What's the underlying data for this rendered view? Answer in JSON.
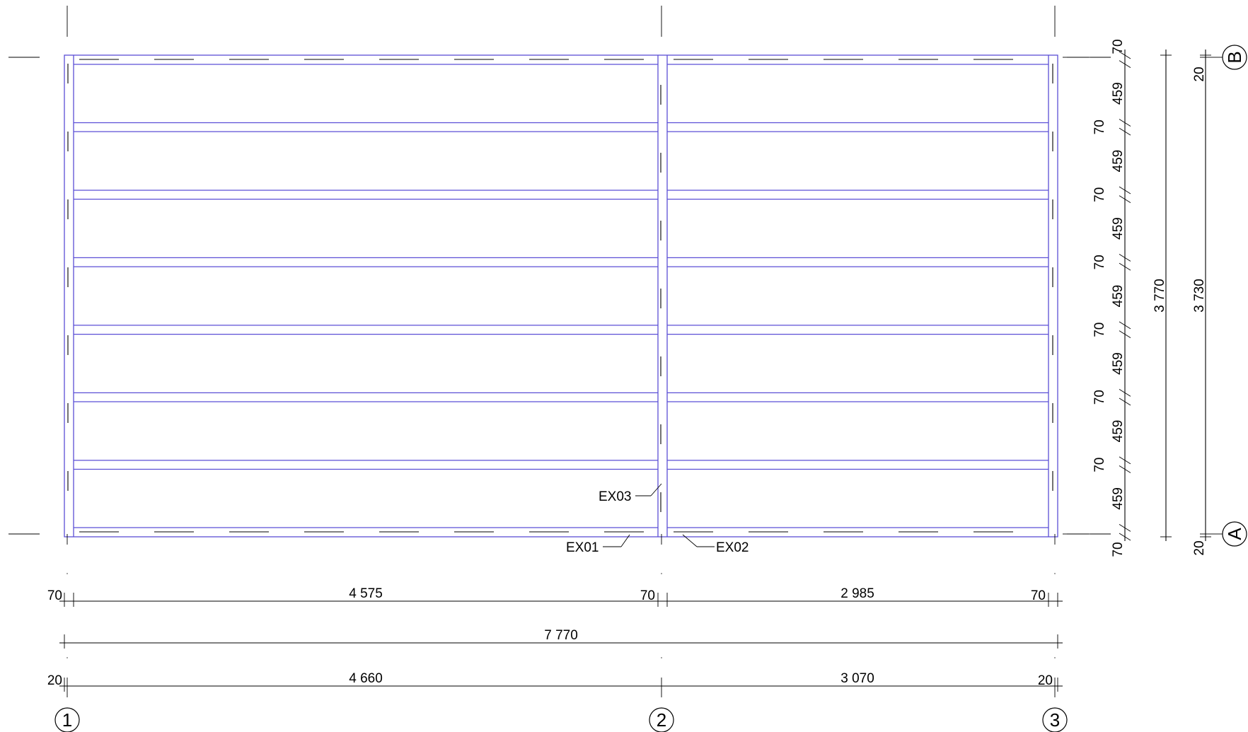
{
  "grid_lines": {
    "x": [
      "1",
      "2",
      "3"
    ],
    "y": [
      "A",
      "B"
    ]
  },
  "element_tags": {
    "ex01": "EX01",
    "ex02": "EX02",
    "ex03": "EX03"
  },
  "horizontal_dimensions": {
    "row1": [
      "70",
      "4 575",
      "70",
      "2 985",
      "70"
    ],
    "row2": "7 770",
    "row3": [
      "20",
      "4 660",
      "3 070",
      "20"
    ]
  },
  "vertical_dimensions": {
    "detail_chain": [
      "70",
      "459",
      "70",
      "459",
      "70",
      "459",
      "70",
      "459",
      "70",
      "459",
      "70",
      "459",
      "70",
      "459",
      "70"
    ],
    "overall_inner": "3 770",
    "overall_grid": "3 730",
    "grid_end_offsets": [
      "20",
      "20"
    ]
  },
  "colors": {
    "frame": "#5b4fd6",
    "annotation": "#000000"
  }
}
